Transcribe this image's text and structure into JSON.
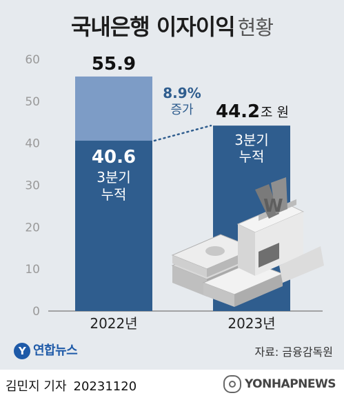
{
  "title": {
    "main": "국내은행 이자이익",
    "sub": "현황"
  },
  "chart_data": {
    "type": "bar",
    "categories": [
      "2022년",
      "2023년"
    ],
    "series": [
      {
        "values": [
          55.9,
          null
        ],
        "color": "#7d9cc6"
      },
      {
        "values": [
          40.6,
          44.2
        ],
        "color": "#2f5d8e"
      }
    ],
    "value_labels": {
      "total_2022": "55.9",
      "cumulative_2022": "40.6",
      "cumulative_2023": "44.2",
      "unit": "조 원"
    },
    "bar_caption": "3분기\n누적",
    "annotation": {
      "value": "8.9%",
      "text": "증가"
    },
    "yticks": [
      "0",
      "10",
      "20",
      "30",
      "40",
      "50",
      "60"
    ],
    "ylim": [
      0,
      60
    ],
    "grid": false
  },
  "source": "자료: 금융감독원",
  "logo_text": "연합뉴스",
  "credit": {
    "name": "김민지 기자",
    "date": "20231120"
  },
  "watermark": "YONHAPNEWS",
  "colors": {
    "background": "#e6eaee",
    "bar_top": "#7d9cc6",
    "bar_main": "#2f5d8e",
    "accent": "#2f5d8e"
  },
  "icons": [
    "money-stack-icon",
    "bank-building-icon"
  ]
}
